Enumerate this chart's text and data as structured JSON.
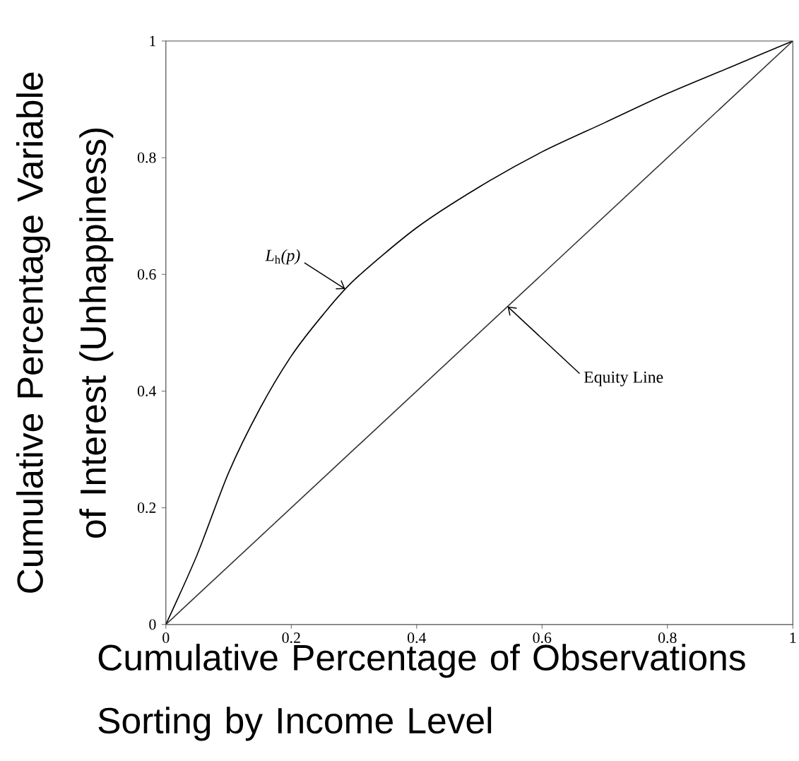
{
  "chart_data": {
    "type": "line",
    "xlabel": "Cumulative Percentage of Observations Sorting by Income Level",
    "ylabel": "Cumulative Percentage Variable of Interest (Unhappiness)",
    "xlim": [
      0,
      1
    ],
    "ylim": [
      0,
      1
    ],
    "xticks": [
      0,
      0.2,
      0.4,
      0.6,
      0.8,
      1
    ],
    "yticks": [
      0,
      0.2,
      0.4,
      0.6,
      0.8,
      1
    ],
    "series": [
      {
        "color": "#000000",
        "x": [
          0,
          0.05,
          0.1,
          0.15,
          0.2,
          0.25,
          0.3,
          0.4,
          0.5,
          0.6,
          0.7,
          0.8,
          0.9,
          1
        ],
        "values": [
          0,
          0.12,
          0.26,
          0.37,
          0.46,
          0.53,
          0.59,
          0.68,
          0.75,
          0.81,
          0.86,
          0.91,
          0.955,
          1
        ]
      },
      {
        "color": "#333333",
        "x": [
          0,
          1
        ],
        "values": [
          0,
          1
        ]
      }
    ],
    "annotations": [
      {
        "text": "*L*$_{h}$*(p)*",
        "x": 0.286,
        "y": 0.575
      },
      {
        "text": "Equity Line",
        "x": 0.545,
        "y": 0.545
      }
    ],
    "grid": false,
    "marker": "none",
    "line_style": "solid"
  }
}
